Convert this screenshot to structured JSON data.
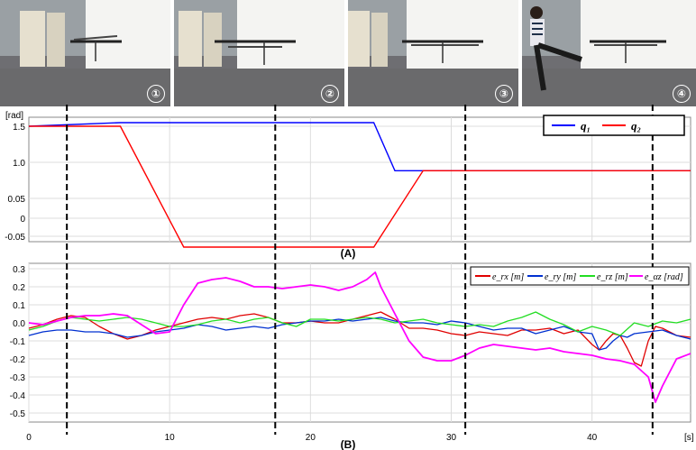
{
  "photos": [
    {
      "label": "①"
    },
    {
      "label": "②"
    },
    {
      "label": "③"
    },
    {
      "label": "④"
    }
  ],
  "colors": {
    "q1": "#0000ff",
    "q2": "#ff0000",
    "erx": "#e00000",
    "ery": "#0030d0",
    "erz": "#22dd22",
    "eaz": "#ff00ff"
  },
  "chart_data": [
    {
      "type": "line",
      "panel_label": "(A)",
      "unit_label": "[rad]",
      "ytick_labels": [
        "1.5",
        "1.0",
        "0.05",
        "0",
        "-0.05"
      ],
      "ylim": [
        -0.08,
        1.6
      ],
      "xlim": [
        0,
        47
      ],
      "grid": true,
      "legend_position": "top-right",
      "series": [
        {
          "name": "q₁",
          "color": "#0000ff",
          "x": [
            0,
            6.5,
            24.5,
            26.0,
            47
          ],
          "y": [
            1.5,
            1.55,
            1.55,
            0.78,
            0.78
          ]
        },
        {
          "name": "q₂",
          "color": "#ff0000",
          "x": [
            0,
            6.5,
            11.0,
            24.5,
            28.0,
            47
          ],
          "y": [
            1.5,
            1.5,
            -0.08,
            -0.08,
            0.78,
            0.78
          ]
        }
      ]
    },
    {
      "type": "line",
      "panel_label": "(B)",
      "yticks": [
        0.3,
        0.2,
        0.1,
        0.0,
        -0.1,
        -0.2,
        -0.3,
        -0.4,
        -0.5
      ],
      "ytick_labels": [
        "0.3",
        "0.2",
        "0.1",
        "0.0",
        "-0.1",
        "-0.2",
        "-0.3",
        "-0.4",
        "-0.5"
      ],
      "ylim": [
        -0.55,
        0.33
      ],
      "xlim": [
        0,
        47
      ],
      "xticks": [
        0,
        10,
        20,
        30,
        40
      ],
      "xtick_labels": [
        "0",
        "10",
        "20",
        "30",
        "40"
      ],
      "x_unit": "[s]",
      "grid": true,
      "legend_position": "top-right",
      "series": [
        {
          "name": "e_rx [m]",
          "color": "#e00000",
          "x": [
            0,
            1,
            2,
            3,
            4,
            5,
            6,
            7,
            8,
            9,
            10,
            11,
            12,
            13,
            14,
            15,
            16,
            17,
            18,
            19,
            20,
            21,
            22,
            23,
            24,
            25,
            26,
            27,
            28,
            29,
            30,
            31,
            32,
            33,
            34,
            35,
            36,
            37,
            38,
            39,
            40,
            40.5,
            41,
            41.5,
            42,
            42.5,
            43,
            43.5,
            44,
            44.5,
            45,
            46,
            47
          ],
          "y": [
            -0.03,
            -0.01,
            0.02,
            0.04,
            0.03,
            -0.02,
            -0.06,
            -0.09,
            -0.07,
            -0.04,
            -0.02,
            0.0,
            0.02,
            0.03,
            0.02,
            0.04,
            0.05,
            0.03,
            0.0,
            0.0,
            0.01,
            0.0,
            0.0,
            0.02,
            0.04,
            0.06,
            0.02,
            -0.03,
            -0.03,
            -0.04,
            -0.06,
            -0.07,
            -0.05,
            -0.06,
            -0.07,
            -0.04,
            -0.04,
            -0.03,
            -0.06,
            -0.04,
            -0.12,
            -0.15,
            -0.1,
            -0.06,
            -0.07,
            -0.14,
            -0.22,
            -0.24,
            -0.1,
            -0.02,
            -0.03,
            -0.07,
            -0.08
          ]
        },
        {
          "name": "e_ry [m]",
          "color": "#0030d0",
          "x": [
            0,
            1,
            2,
            3,
            4,
            5,
            6,
            7,
            8,
            9,
            10,
            11,
            12,
            13,
            14,
            15,
            16,
            17,
            18,
            19,
            20,
            21,
            22,
            23,
            24,
            25,
            26,
            27,
            28,
            29,
            30,
            31,
            32,
            33,
            34,
            35,
            36,
            37,
            38,
            39,
            40,
            40.5,
            41,
            41.5,
            42,
            42.5,
            43,
            44,
            45,
            46,
            47
          ],
          "y": [
            -0.07,
            -0.05,
            -0.04,
            -0.04,
            -0.05,
            -0.05,
            -0.06,
            -0.08,
            -0.07,
            -0.05,
            -0.04,
            -0.03,
            -0.01,
            -0.02,
            -0.04,
            -0.03,
            -0.02,
            -0.03,
            -0.01,
            0.0,
            0.01,
            0.01,
            0.02,
            0.01,
            0.02,
            0.03,
            0.01,
            0.0,
            0.0,
            -0.01,
            0.01,
            0.0,
            -0.02,
            -0.04,
            -0.03,
            -0.03,
            -0.06,
            -0.04,
            -0.02,
            -0.05,
            -0.06,
            -0.15,
            -0.14,
            -0.1,
            -0.07,
            -0.08,
            -0.06,
            -0.05,
            -0.04,
            -0.07,
            -0.09
          ]
        },
        {
          "name": "e_rz [m]",
          "color": "#22dd22",
          "x": [
            0,
            1,
            2,
            3,
            4,
            5,
            6,
            7,
            8,
            9,
            10,
            11,
            12,
            13,
            14,
            15,
            16,
            17,
            18,
            19,
            20,
            21,
            22,
            23,
            24,
            25,
            26,
            27,
            28,
            29,
            30,
            31,
            32,
            33,
            34,
            35,
            36,
            37,
            38,
            39,
            40,
            41,
            42,
            43,
            44,
            45,
            46,
            47
          ],
          "y": [
            -0.04,
            -0.02,
            0.01,
            0.03,
            0.02,
            0.01,
            0.02,
            0.03,
            0.02,
            0.0,
            -0.02,
            -0.02,
            -0.01,
            0.01,
            0.02,
            0.0,
            0.02,
            0.03,
            0.0,
            -0.02,
            0.02,
            0.02,
            0.01,
            0.02,
            0.03,
            0.02,
            0.0,
            0.01,
            0.02,
            0.0,
            -0.01,
            -0.02,
            -0.01,
            -0.02,
            0.01,
            0.03,
            0.06,
            0.02,
            -0.01,
            -0.05,
            -0.02,
            -0.04,
            -0.07,
            0.0,
            -0.02,
            0.01,
            0.0,
            0.02
          ]
        },
        {
          "name": "e_αz [rad]",
          "color": "#ff00ff",
          "x": [
            0,
            1,
            2,
            3,
            4,
            5,
            6,
            7,
            8,
            9,
            10,
            11,
            12,
            13,
            14,
            15,
            16,
            17,
            18,
            19,
            20,
            21,
            22,
            23,
            24,
            24.6,
            25,
            26,
            27,
            28,
            29,
            30,
            31,
            32,
            33,
            34,
            35,
            36,
            37,
            38,
            39,
            40,
            41,
            42,
            43,
            44,
            44.5,
            45,
            46,
            47
          ],
          "y": [
            0.0,
            -0.01,
            0.01,
            0.03,
            0.04,
            0.04,
            0.05,
            0.04,
            -0.01,
            -0.06,
            -0.05,
            0.1,
            0.22,
            0.24,
            0.25,
            0.23,
            0.2,
            0.2,
            0.19,
            0.2,
            0.21,
            0.2,
            0.18,
            0.2,
            0.24,
            0.28,
            0.2,
            0.05,
            -0.1,
            -0.19,
            -0.21,
            -0.21,
            -0.18,
            -0.14,
            -0.12,
            -0.13,
            -0.14,
            -0.15,
            -0.14,
            -0.16,
            -0.17,
            -0.18,
            -0.2,
            -0.21,
            -0.23,
            -0.3,
            -0.44,
            -0.35,
            -0.2,
            -0.17
          ]
        }
      ]
    }
  ],
  "event_lines_x": [
    2.7,
    17.5,
    31.0,
    44.3
  ]
}
